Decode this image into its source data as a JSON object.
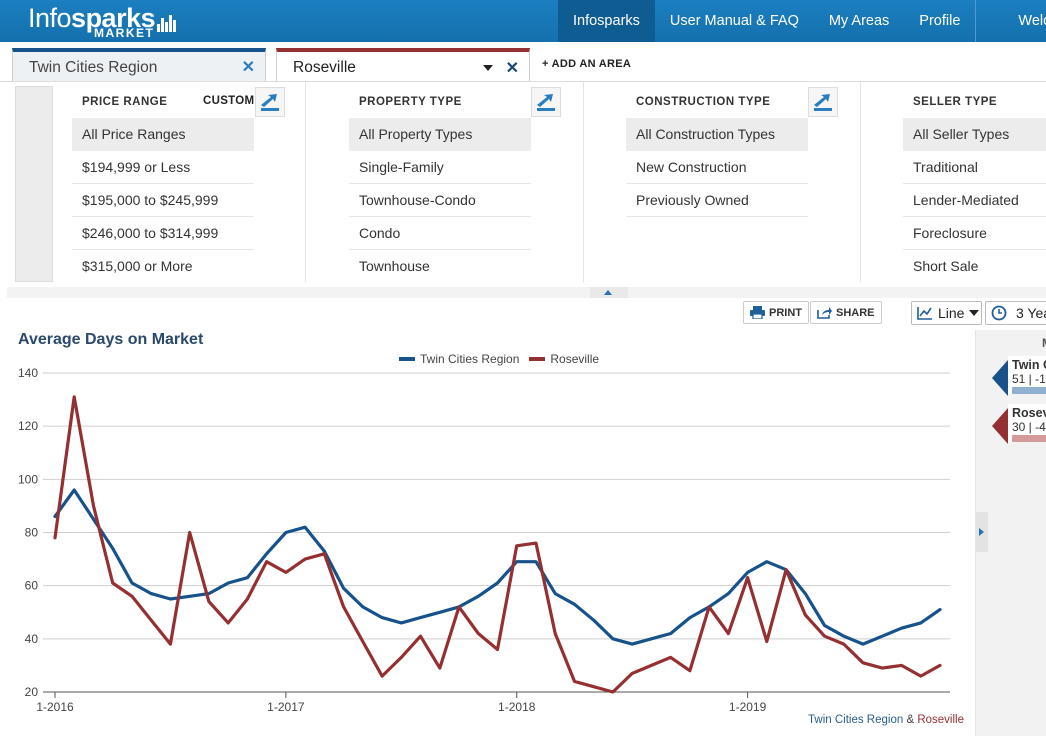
{
  "header": {
    "logo_light": "Info",
    "logo_bold": "sparks",
    "logo_sub": "MARKET",
    "nav": [
      "Infosparks",
      "User Manual & FAQ",
      "My Areas",
      "Profile"
    ],
    "welcome": "Welc"
  },
  "tabs": [
    {
      "label": "Twin Cities Region"
    },
    {
      "label": "Roseville"
    }
  ],
  "add_area": "+ ADD AN AREA",
  "filters": {
    "price": {
      "heading": "PRICE RANGE",
      "custom": "CUSTOM",
      "options": [
        "All Price Ranges",
        "$194,999 or Less",
        "$195,000 to $245,999",
        "$246,000 to $314,999",
        "$315,000 or More"
      ]
    },
    "property": {
      "heading": "PROPERTY TYPE",
      "options": [
        "All Property Types",
        "Single-Family",
        "Townhouse-Condo",
        "Condo",
        "Townhouse"
      ]
    },
    "construction": {
      "heading": "CONSTRUCTION TYPE",
      "options": [
        "All Construction Types",
        "New Construction",
        "Previously Owned"
      ]
    },
    "seller": {
      "heading": "SELLER TYPE",
      "options": [
        "All Seller Types",
        "Traditional",
        "Lender-Mediated",
        "Foreclosure",
        "Short Sale"
      ]
    }
  },
  "toolbar": {
    "print": "PRINT",
    "share": "SHARE",
    "chart_type": "Line",
    "range": "3 Yea"
  },
  "chart_title": "Average Days on Market",
  "credit": {
    "a": "Twin Cities Region",
    "amp": "&",
    "b": "Roseville"
  },
  "side": {
    "column_label": "M",
    "cards": [
      {
        "name": "Twin C",
        "value": "51 | -1",
        "color": "#17528a",
        "bar": "#8fb0d1"
      },
      {
        "name": "Rosev",
        "value": "30 | -4",
        "color": "#953032",
        "bar": "#d49a9b"
      }
    ]
  },
  "chart_data": {
    "type": "line",
    "title": "Average Days on Market",
    "xlabel": "",
    "ylabel": "",
    "ylim": [
      20,
      140
    ],
    "yticks": [
      20,
      40,
      60,
      80,
      100,
      120,
      140
    ],
    "x_tick_labels": [
      "1-2016",
      "1-2017",
      "1-2018",
      "1-2019"
    ],
    "x_tick_index": [
      0,
      12,
      24,
      36
    ],
    "legend_position": "top",
    "grid": true,
    "series": [
      {
        "name": "Twin Cities Region",
        "color": "#17528a",
        "values": [
          86,
          96,
          85,
          74,
          61,
          57,
          55,
          56,
          57,
          61,
          63,
          72,
          80,
          82,
          73,
          59,
          52,
          48,
          46,
          48,
          50,
          52,
          56,
          61,
          69,
          69,
          57,
          53,
          47,
          40,
          38,
          40,
          42,
          48,
          52,
          57,
          65,
          69,
          66,
          57,
          45,
          41,
          38,
          41,
          44,
          46,
          51
        ]
      },
      {
        "name": "Roseville",
        "color": "#953032",
        "values": [
          78,
          131,
          90,
          61,
          56,
          47,
          38,
          80,
          54,
          46,
          55,
          69,
          65,
          70,
          72,
          52,
          39,
          26,
          33,
          41,
          29,
          52,
          42,
          36,
          75,
          76,
          42,
          24,
          22,
          20,
          27,
          30,
          33,
          28,
          52,
          42,
          63,
          39,
          66,
          49,
          41,
          38,
          31,
          29,
          30,
          26,
          30
        ]
      }
    ]
  }
}
